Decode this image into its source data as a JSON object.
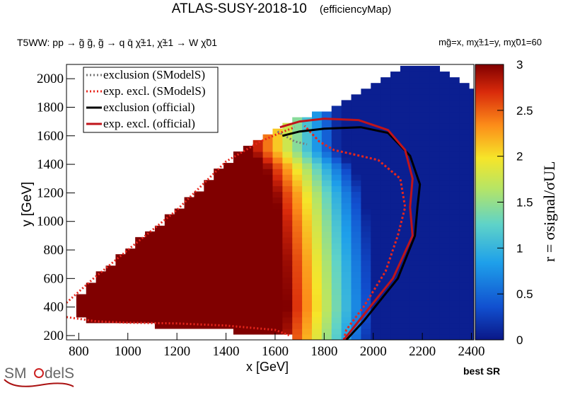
{
  "header": {
    "title": "ATLAS-SUSY-2018-10",
    "subtitle": "(efficiencyMap)",
    "process": "T5WW: pp  → g̃ g̃, g̃  → q q̄ χ̃±1, χ̃±1 → W χ̃01",
    "masses": "mg̃=x, mχ̃±1=y, mχ̃01=60"
  },
  "footer": {
    "best_sr": "best SR",
    "logo_text": "SModelS"
  },
  "chart_data": {
    "type": "heatmap",
    "title": "ATLAS-SUSY-2018-10",
    "xlabel": "x [GeV]",
    "ylabel": "y [GeV]",
    "zlabel": "r = σsignal/σUL",
    "xlim": [
      750,
      2410
    ],
    "ylim": [
      170,
      2100
    ],
    "zlim": [
      0,
      3
    ],
    "x_ticks": [
      800,
      1000,
      1200,
      1400,
      1600,
      1800,
      2000,
      2200,
      2400
    ],
    "y_ticks": [
      200,
      400,
      600,
      800,
      1000,
      1200,
      1400,
      1600,
      1800,
      2000
    ],
    "z_ticks": [
      0,
      0.5,
      1,
      1.5,
      2,
      2.5,
      3
    ],
    "grid": false,
    "legend_position": "top-left",
    "legend": [
      {
        "label": "exclusion (SModelS)",
        "color": "#7a7a7a",
        "style": "dotted"
      },
      {
        "label": "exp. excl. (SModelS)",
        "color": "#e8261c",
        "style": "dotted"
      },
      {
        "label": "exclusion (official)",
        "color": "#000000",
        "style": "solid"
      },
      {
        "label": "exp. excl. (official)",
        "color": "#c0141a",
        "style": "solid"
      }
    ],
    "heatmap_model": {
      "grid_step": 40,
      "x_start": 750,
      "y_start": 170,
      "region_upper_edge": [
        [
          750,
          390
        ],
        [
          870,
          600
        ],
        [
          1000,
          800
        ],
        [
          1200,
          1080
        ],
        [
          1400,
          1410
        ],
        [
          1600,
          1660
        ],
        [
          1700,
          1720
        ],
        [
          1900,
          1840
        ],
        [
          2100,
          2040
        ],
        [
          2130,
          2100
        ],
        [
          2250,
          2100
        ],
        [
          2410,
          1920
        ]
      ],
      "region_lower_edge": [
        [
          750,
          430
        ],
        [
          800,
          340
        ],
        [
          860,
          300
        ],
        [
          1650,
          200
        ],
        [
          1660,
          170
        ],
        [
          2410,
          170
        ]
      ],
      "excluded_front": [
        [
          1630,
          170
        ],
        [
          1650,
          400
        ],
        [
          1640,
          700
        ],
        [
          1620,
          1000
        ],
        [
          1600,
          1200
        ],
        [
          1560,
          1380
        ],
        [
          1500,
          1500
        ]
      ],
      "r_at_front": 3.0,
      "r_decay_per_gev": 0.0082,
      "r_floor": 0.05
    },
    "exclusion_sm": [
      [
        1610,
        1630
      ],
      [
        1640,
        1600
      ],
      [
        1680,
        1560
      ],
      [
        1730,
        1540
      ]
    ],
    "exp_excl_sm_outer": [
      [
        750,
        330
      ],
      [
        870,
        300
      ],
      [
        1000,
        290
      ],
      [
        1200,
        285
      ],
      [
        1400,
        270
      ],
      [
        1600,
        240
      ],
      [
        1660,
        200
      ]
    ],
    "exp_excl_sm_upper": [
      [
        750,
        430
      ],
      [
        860,
        600
      ],
      [
        1000,
        800
      ],
      [
        1200,
        1080
      ],
      [
        1400,
        1420
      ],
      [
        1540,
        1560
      ],
      [
        1620,
        1620
      ],
      [
        1680,
        1660
      ]
    ],
    "exp_excl_sm_contour": [
      [
        1880,
        170
      ],
      [
        1890,
        240
      ],
      [
        1960,
        400
      ],
      [
        2050,
        650
      ],
      [
        2100,
        900
      ],
      [
        2130,
        1100
      ],
      [
        2110,
        1300
      ],
      [
        2020,
        1430
      ],
      [
        1920,
        1470
      ],
      [
        1840,
        1500
      ],
      [
        1780,
        1560
      ],
      [
        1720,
        1670
      ]
    ],
    "exclusion_official": [
      [
        1890,
        170
      ],
      [
        1960,
        300
      ],
      [
        2100,
        600
      ],
      [
        2170,
        900
      ],
      [
        2180,
        1100
      ],
      [
        2190,
        1260
      ],
      [
        2150,
        1460
      ],
      [
        2060,
        1620
      ],
      [
        1950,
        1660
      ],
      [
        1800,
        1650
      ],
      [
        1700,
        1630
      ],
      [
        1630,
        1600
      ]
    ],
    "exp_excl_official": [
      [
        1880,
        170
      ],
      [
        1940,
        300
      ],
      [
        2080,
        600
      ],
      [
        2160,
        900
      ],
      [
        2150,
        1100
      ],
      [
        2160,
        1300
      ],
      [
        2130,
        1500
      ],
      [
        2060,
        1640
      ],
      [
        1940,
        1710
      ],
      [
        1800,
        1720
      ],
      [
        1700,
        1700
      ],
      [
        1620,
        1660
      ]
    ]
  }
}
